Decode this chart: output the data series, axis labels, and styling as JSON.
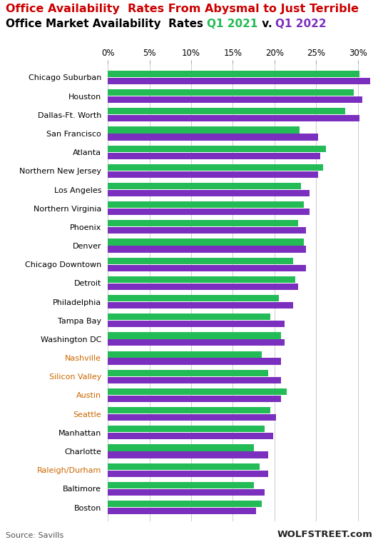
{
  "title1": "Office Availability  Rates From Abysmal to Just Terrible",
  "title2_part1": "Office Market Availability  Rates ",
  "title2_q2021": "Q1 2021",
  "title2_v": " v. ",
  "title2_q2022": "Q1 2022",
  "markets": [
    "Chicago Suburban",
    "Houston",
    "Dallas-Ft. Worth",
    "San Francisco",
    "Atlanta",
    "Northern New Jersey",
    "Los Angeles",
    "Northern Virginia",
    "Phoenix",
    "Denver",
    "Chicago Downtown",
    "Detroit",
    "Philadelphia",
    "Tampa Bay",
    "Washington DC",
    "Nashville",
    "Silicon Valley",
    "Austin",
    "Seattle",
    "Manhattan",
    "Charlotte",
    "Raleigh/Durham",
    "Baltimore",
    "Boston"
  ],
  "q1_2021": [
    30.2,
    29.5,
    28.5,
    23.0,
    26.2,
    25.8,
    23.2,
    23.5,
    22.8,
    23.5,
    22.2,
    22.5,
    20.5,
    19.5,
    20.8,
    18.5,
    19.2,
    21.5,
    19.5,
    18.8,
    17.5,
    18.2,
    17.5,
    18.5
  ],
  "q1_2022": [
    31.8,
    30.5,
    30.2,
    25.2,
    25.5,
    25.2,
    24.2,
    24.2,
    23.8,
    23.8,
    23.8,
    22.8,
    22.2,
    21.2,
    21.2,
    20.8,
    20.8,
    20.8,
    20.2,
    19.8,
    19.2,
    19.2,
    18.8,
    17.8
  ],
  "color_2021": "#22bb55",
  "color_2022": "#7b2fbe",
  "source_text": "Source: Savills",
  "watermark": "WOLFSTREET.com",
  "title1_color": "#cc0000",
  "title2_color_main": "#000000",
  "title2_color_2021": "#22bb55",
  "title2_color_2022": "#7b2fbe",
  "background_color": "#ffffff",
  "label_colors": {
    "Chicago Suburban": "#000000",
    "Houston": "#000000",
    "Dallas-Ft. Worth": "#000000",
    "San Francisco": "#000000",
    "Atlanta": "#000000",
    "Northern New Jersey": "#000000",
    "Los Angeles": "#000000",
    "Northern Virginia": "#000000",
    "Phoenix": "#000000",
    "Denver": "#000000",
    "Chicago Downtown": "#000000",
    "Detroit": "#000000",
    "Philadelphia": "#000000",
    "Tampa Bay": "#000000",
    "Washington DC": "#000000",
    "Nashville": "#cc6600",
    "Silicon Valley": "#cc6600",
    "Austin": "#cc6600",
    "Seattle": "#cc6600",
    "Manhattan": "#000000",
    "Charlotte": "#000000",
    "Raleigh/Durham": "#cc6600",
    "Baltimore": "#000000",
    "Boston": "#000000"
  },
  "xlim": [
    0,
    31.5
  ],
  "xticks": [
    0,
    5,
    10,
    15,
    20,
    25,
    30
  ]
}
